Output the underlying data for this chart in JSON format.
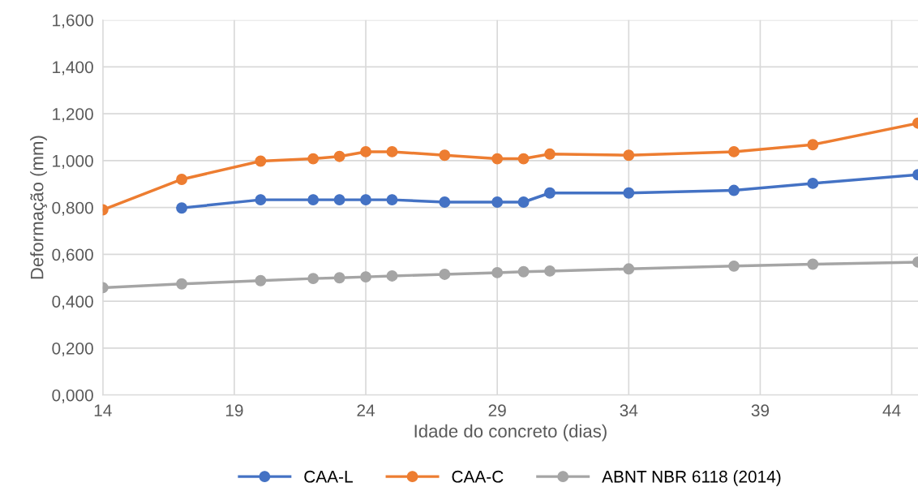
{
  "chart_data": {
    "type": "line",
    "xlabel": "Idade do concreto (dias)",
    "ylabel": "Deformação (mm)",
    "xlim": [
      14,
      45
    ],
    "xticks": [
      14,
      19,
      24,
      29,
      34,
      39,
      44
    ],
    "ylim": [
      0,
      1.6
    ],
    "yticks": [
      {
        "value": 0,
        "label": "0,000"
      },
      {
        "value": 0.2,
        "label": "0,200"
      },
      {
        "value": 0.4,
        "label": "0,400"
      },
      {
        "value": 0.6,
        "label": "0,600"
      },
      {
        "value": 0.8,
        "label": "0,800"
      },
      {
        "value": 1.0,
        "label": "1,000"
      },
      {
        "value": 1.2,
        "label": "1,200"
      },
      {
        "value": 1.4,
        "label": "1,400"
      },
      {
        "value": 1.6,
        "label": "1,600"
      }
    ],
    "grid": true,
    "legend": "bottom",
    "marker": "circle",
    "line_style": "solid",
    "series": [
      {
        "name": "CAA-L",
        "color": "#4472c4",
        "x": [
          17,
          20,
          22,
          23,
          24,
          25,
          27,
          29,
          30,
          31,
          34,
          38,
          41,
          45
        ],
        "values": [
          0.798,
          0.833,
          0.833,
          0.833,
          0.833,
          0.833,
          0.823,
          0.823,
          0.823,
          0.862,
          0.862,
          0.873,
          0.903,
          0.94
        ]
      },
      {
        "name": "CAA-C",
        "color": "#ed7d31",
        "x": [
          14,
          17,
          20,
          22,
          23,
          24,
          25,
          27,
          29,
          30,
          31,
          34,
          38,
          41,
          45
        ],
        "values": [
          0.79,
          0.92,
          0.998,
          1.008,
          1.018,
          1.038,
          1.038,
          1.023,
          1.008,
          1.008,
          1.028,
          1.023,
          1.038,
          1.068,
          1.16
        ]
      },
      {
        "name": "ABNT NBR 6118 (2014)",
        "color": "#a5a5a5",
        "x": [
          14,
          17,
          20,
          22,
          23,
          24,
          25,
          27,
          29,
          30,
          31,
          34,
          38,
          41,
          45
        ],
        "values": [
          0.458,
          0.474,
          0.488,
          0.497,
          0.5,
          0.504,
          0.508,
          0.515,
          0.522,
          0.526,
          0.529,
          0.538,
          0.55,
          0.558,
          0.567
        ]
      }
    ]
  }
}
